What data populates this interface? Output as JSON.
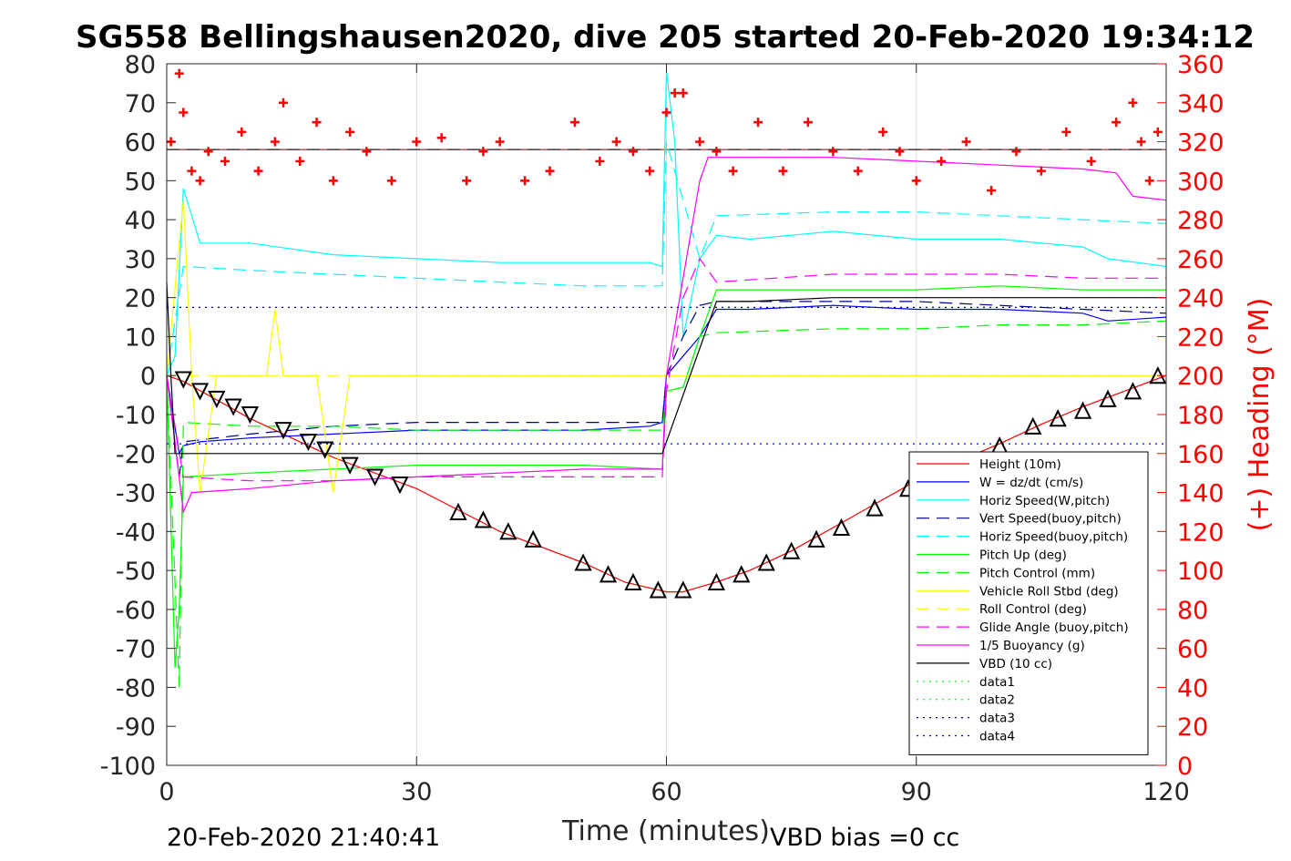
{
  "chart_data": {
    "type": "line",
    "title": "SG558 Bellingshausen2020, dive 205 started 20-Feb-2020 19:34:12",
    "xlabel": "Time (minutes)",
    "ylabel_right": "(+) Heading (°M)",
    "xlim": [
      0,
      120
    ],
    "ylim": [
      -100,
      80
    ],
    "ylim_right": [
      0,
      360
    ],
    "x_ticks": [
      "0",
      "30",
      "60",
      "90",
      "120"
    ],
    "y_ticks": [
      "80",
      "70",
      "60",
      "50",
      "40",
      "30",
      "20",
      "10",
      "0",
      "-10",
      "-20",
      "-30",
      "-40",
      "-50",
      "-60",
      "-70",
      "-80",
      "-90",
      "-100"
    ],
    "y_right_ticks": [
      "360",
      "340",
      "320",
      "300",
      "280",
      "260",
      "240",
      "220",
      "200",
      "180",
      "160",
      "140",
      "120",
      "100",
      "80",
      "60",
      "40",
      "20",
      "0"
    ],
    "grid": true,
    "legend_position": "bottom-right",
    "footer_left": "20-Feb-2020 21:40:41",
    "footer_right": "VBD bias =0 cc",
    "series": [
      {
        "name": "Height (10m)",
        "color": "#ff0000",
        "style": "solid",
        "x": [
          0,
          2,
          10,
          20,
          30,
          40,
          50,
          55,
          60,
          62,
          66,
          70,
          75,
          80,
          85,
          90,
          95,
          100,
          105,
          110,
          115,
          120
        ],
        "y": [
          0,
          -1.5,
          -11,
          -21,
          -29,
          -40,
          -48,
          -53,
          -55.5,
          -55.5,
          -53,
          -50,
          -45,
          -39,
          -33,
          -27,
          -22,
          -17.5,
          -12.5,
          -8,
          -4,
          0
        ]
      },
      {
        "name": "W = dz/dt (cm/s)",
        "color": "#0000ff",
        "style": "solid",
        "x": [
          0,
          1.5,
          2,
          4,
          10,
          20,
          30,
          40,
          50,
          58,
          59.5,
          60,
          62,
          64,
          66,
          70,
          80,
          90,
          100,
          110,
          113,
          120
        ],
        "y": [
          0,
          -20,
          -18,
          -17,
          -16,
          -15,
          -14,
          -14,
          -14,
          -13,
          -12,
          0,
          5,
          10,
          17,
          17,
          18,
          17,
          17,
          16,
          14,
          15
        ]
      },
      {
        "name": "Horiz Speed(W,pitch)",
        "color": "#00ffff",
        "style": "solid",
        "x": [
          0,
          1,
          2,
          4,
          10,
          20,
          30,
          40,
          50,
          58,
          59.5,
          60,
          61,
          62,
          64,
          66,
          70,
          80,
          90,
          100,
          110,
          113,
          120
        ],
        "y": [
          0,
          5,
          48,
          34,
          34,
          31,
          30,
          29,
          29,
          29,
          28,
          78,
          60,
          10,
          30,
          36,
          35,
          37,
          35,
          35,
          33,
          30,
          28
        ]
      },
      {
        "name": "Vert Speed(buoy,pitch)",
        "color": "#00008b",
        "style": "dashed",
        "x": [
          0,
          1.5,
          2,
          10,
          20,
          30,
          40,
          50,
          59.5,
          60,
          62,
          64,
          66,
          80,
          90,
          100,
          110,
          120
        ],
        "y": [
          0,
          -26,
          -17,
          -15,
          -13,
          -12,
          -12,
          -12,
          -12,
          0,
          10,
          18,
          19,
          19,
          19,
          18,
          17,
          16
        ]
      },
      {
        "name": "Horiz Speed(buoy,pitch)",
        "color": "#00ffff",
        "style": "dashed",
        "x": [
          0,
          2,
          10,
          20,
          30,
          40,
          50,
          59.5,
          60,
          64,
          66,
          80,
          90,
          100,
          110,
          120
        ],
        "y": [
          0,
          28,
          27,
          26,
          25,
          24,
          23,
          23,
          60,
          30,
          41,
          42,
          42,
          41,
          40,
          39
        ]
      },
      {
        "name": "Pitch Up (deg)",
        "color": "#00ff00",
        "style": "solid",
        "x": [
          0,
          1,
          1.5,
          2,
          10,
          20,
          30,
          40,
          50,
          59.5,
          60,
          62,
          64,
          66,
          80,
          90,
          100,
          110,
          120
        ],
        "y": [
          0,
          -75,
          -60,
          -26,
          -25,
          -24,
          -23,
          -23,
          -23,
          -24,
          -4,
          -3,
          10,
          22,
          22,
          22,
          23,
          22,
          22
        ]
      },
      {
        "name": "Pitch Control (mm)",
        "color": "#00ff00",
        "style": "dashed",
        "x": [
          0,
          1.5,
          2,
          10,
          20,
          30,
          40,
          50,
          59.5,
          60,
          62,
          64,
          66,
          80,
          90,
          100,
          110,
          120
        ],
        "y": [
          0,
          -80,
          -12,
          -13,
          -13,
          -14,
          -14,
          -14,
          -14,
          -4,
          -3,
          10,
          11,
          12,
          12,
          13,
          13,
          14
        ]
      },
      {
        "name": "Vehicle Roll Stbd (deg)",
        "color": "#ffff00",
        "style": "solid",
        "x": [
          0,
          2,
          3,
          4,
          6,
          8,
          12,
          13,
          14,
          18,
          20,
          22,
          25,
          30,
          40,
          50,
          59,
          60,
          66,
          70,
          80,
          90,
          100,
          110,
          113,
          116,
          120
        ],
        "y": [
          0,
          45,
          0,
          -30,
          0,
          0,
          0,
          17,
          0,
          0,
          -30,
          0,
          0,
          0,
          0,
          0,
          0,
          0,
          0,
          0,
          0,
          0,
          0,
          0,
          0,
          0,
          0
        ]
      },
      {
        "name": "Roll Control (deg)",
        "color": "#ffff00",
        "style": "dashed",
        "x": [
          0,
          2,
          10,
          20,
          30,
          40,
          50,
          60,
          70,
          80,
          90,
          100,
          110,
          120
        ],
        "y": [
          0,
          0,
          0,
          0,
          0,
          0,
          0,
          0,
          0,
          0,
          0,
          0,
          0,
          0
        ]
      },
      {
        "name": "Glide Angle (buoy,pitch)",
        "color": "#ff00ff",
        "style": "dashed",
        "x": [
          0,
          2,
          10,
          20,
          30,
          40,
          50,
          59.5,
          60,
          62,
          64,
          66,
          80,
          90,
          100,
          110,
          120
        ],
        "y": [
          0,
          -26,
          -27,
          -27,
          -26,
          -26,
          -26,
          -26,
          -4,
          20,
          30,
          24,
          26,
          26,
          26,
          25,
          25
        ]
      },
      {
        "name": "1/5 Buoyancy (g)",
        "color": "#ff00ff",
        "style": "solid",
        "x": [
          0,
          2,
          3,
          10,
          20,
          30,
          40,
          50,
          59.5,
          60,
          64,
          65,
          66,
          80,
          90,
          100,
          110,
          114,
          116,
          120
        ],
        "y": [
          0,
          -35,
          -30,
          -29,
          -27,
          -26,
          -25,
          -24,
          -24,
          0,
          50,
          56,
          56,
          56,
          55,
          54,
          53,
          52,
          46,
          45
        ]
      },
      {
        "name": "VBD (10 cc)",
        "color": "#000000",
        "style": "solid",
        "x": [
          0,
          0.5,
          1,
          2,
          10,
          20,
          30,
          40,
          50,
          59.5,
          66,
          70,
          80,
          90,
          100,
          110,
          120
        ],
        "y": [
          24,
          0,
          -20,
          -20,
          -20,
          -20,
          -20,
          -20,
          -20,
          -20,
          19,
          19,
          20,
          20,
          20,
          20,
          20
        ]
      },
      {
        "name": "data1",
        "color": "#00ff00",
        "style": "dotted",
        "x": [
          0,
          120
        ],
        "y": [
          null,
          null
        ]
      },
      {
        "name": "data2",
        "color": "#00ff00",
        "style": "dotted",
        "x": [
          0,
          120
        ],
        "y": [
          null,
          null
        ]
      },
      {
        "name": "data3",
        "color": "#00008b",
        "style": "dotted",
        "x": [
          0,
          120
        ],
        "y": [
          17.5,
          17.5
        ]
      },
      {
        "name": "data4",
        "color": "#0000ff",
        "style": "dotted",
        "x": [
          0,
          120
        ],
        "y": [
          -17.5,
          -17.5
        ]
      }
    ],
    "reference_lines": [
      {
        "color": "#8b0000",
        "style": "solid",
        "y": 58
      },
      {
        "color": "#000000",
        "style": "dashed",
        "y": 58
      }
    ],
    "heading_series": {
      "name": "Heading",
      "axis": "right",
      "marker": "+",
      "color": "#ff0000",
      "x": [
        0.5,
        1.5,
        2,
        3,
        4,
        5,
        7,
        9,
        11,
        13,
        14,
        16,
        18,
        20,
        22,
        24,
        27,
        30,
        33,
        36,
        38,
        40,
        43,
        46,
        49,
        52,
        54,
        56,
        58,
        60,
        61,
        62,
        64,
        66,
        68,
        71,
        74,
        77,
        80,
        83,
        86,
        88,
        90,
        93,
        96,
        99,
        102,
        105,
        108,
        111,
        114,
        116,
        117,
        118,
        119
      ],
      "y": [
        320,
        355,
        335,
        305,
        300,
        315,
        310,
        325,
        305,
        320,
        340,
        310,
        330,
        300,
        325,
        315,
        300,
        320,
        322,
        300,
        315,
        320,
        300,
        305,
        330,
        310,
        320,
        315,
        305,
        335,
        345,
        345,
        320,
        315,
        305,
        330,
        305,
        330,
        315,
        305,
        325,
        315,
        300,
        310,
        320,
        295,
        315,
        305,
        325,
        310,
        330,
        340,
        320,
        300,
        325
      ]
    },
    "markers": {
      "down_triangle": {
        "x": [
          2,
          4,
          6,
          8,
          10,
          14,
          17,
          19,
          22,
          25,
          28
        ],
        "y": [
          -1,
          -4,
          -6,
          -8,
          -10,
          -14,
          -17,
          -19,
          -23,
          -26,
          -28
        ]
      },
      "up_triangle": {
        "x": [
          35,
          38,
          41,
          44,
          50,
          53,
          56,
          59,
          62,
          66,
          69,
          72,
          75,
          78,
          81,
          85,
          89,
          93,
          100,
          104,
          107,
          110,
          113,
          116,
          119
        ],
        "y": [
          -35,
          -37,
          -40,
          -42,
          -48,
          -51,
          -53,
          -55,
          -55,
          -53,
          -51,
          -48,
          -45,
          -42,
          -39,
          -34,
          -29,
          -24,
          -18,
          -13,
          -11,
          -9,
          -6,
          -4,
          0
        ]
      }
    }
  }
}
